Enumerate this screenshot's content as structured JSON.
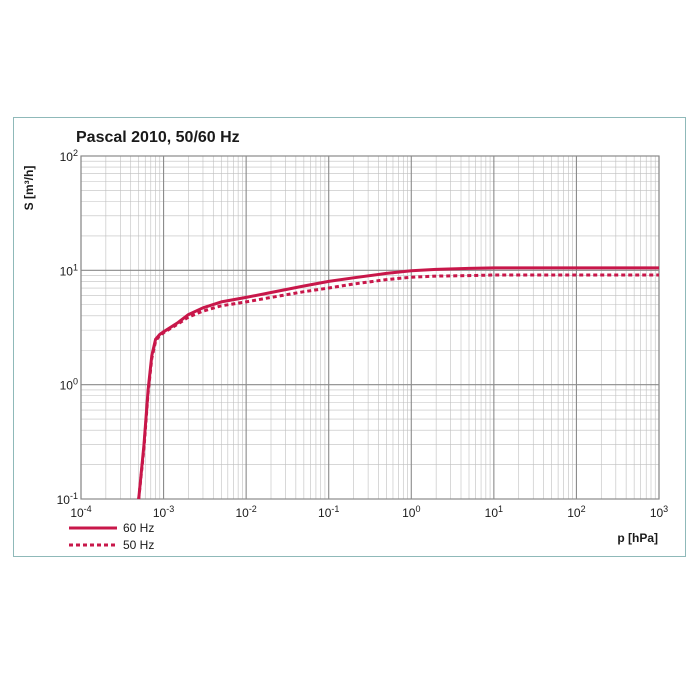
{
  "chart_data": {
    "type": "line",
    "title": "Pascal 2010, 50/60 Hz",
    "xlabel": "p [hPa]",
    "ylabel": "S [m³/h]",
    "x_scale": "log",
    "y_scale": "log",
    "xlim": [
      0.0001,
      1000
    ],
    "ylim": [
      0.1,
      100
    ],
    "grid": true,
    "legend_position": "bottom-left",
    "x_ticks": [
      {
        "base": "10",
        "exp": "-4",
        "value": 0.0001
      },
      {
        "base": "10",
        "exp": "-3",
        "value": 0.001
      },
      {
        "base": "10",
        "exp": "-2",
        "value": 0.01
      },
      {
        "base": "10",
        "exp": "-1",
        "value": 0.1
      },
      {
        "base": "10",
        "exp": "0",
        "value": 1
      },
      {
        "base": "10",
        "exp": "1",
        "value": 10
      },
      {
        "base": "10",
        "exp": "2",
        "value": 100
      },
      {
        "base": "10",
        "exp": "3",
        "value": 1000
      }
    ],
    "y_ticks": [
      {
        "base": "10",
        "exp": "-1",
        "value": 0.1
      },
      {
        "base": "10",
        "exp": "0",
        "value": 1
      },
      {
        "base": "10",
        "exp": "1",
        "value": 10
      },
      {
        "base": "10",
        "exp": "2",
        "value": 100
      }
    ],
    "series": [
      {
        "name": "60 Hz",
        "style": "solid",
        "color": "#c8174a",
        "x": [
          0.0005,
          0.00058,
          0.00065,
          0.00072,
          0.0008,
          0.0009,
          0.001,
          0.0015,
          0.002,
          0.003,
          0.005,
          0.01,
          0.02,
          0.05,
          0.1,
          0.2,
          0.5,
          1,
          2,
          5,
          10,
          20,
          50,
          100,
          1000
        ],
        "y": [
          0.1,
          0.3,
          0.9,
          1.8,
          2.5,
          2.75,
          2.9,
          3.5,
          4.1,
          4.7,
          5.3,
          5.8,
          6.4,
          7.3,
          8.0,
          8.6,
          9.4,
          9.9,
          10.2,
          10.4,
          10.5,
          10.5,
          10.5,
          10.5,
          10.5
        ]
      },
      {
        "name": "50 Hz",
        "style": "dashed",
        "color": "#c8174a",
        "x": [
          0.0005,
          0.00058,
          0.00065,
          0.00072,
          0.0008,
          0.0009,
          0.001,
          0.0015,
          0.002,
          0.003,
          0.005,
          0.01,
          0.02,
          0.05,
          0.1,
          0.2,
          0.5,
          1,
          2,
          5,
          10,
          20,
          50,
          100,
          1000
        ],
        "y": [
          0.1,
          0.28,
          0.85,
          1.7,
          2.4,
          2.7,
          2.85,
          3.4,
          3.9,
          4.4,
          4.9,
          5.3,
          5.8,
          6.5,
          7.0,
          7.6,
          8.3,
          8.7,
          8.9,
          9.0,
          9.1,
          9.1,
          9.1,
          9.1,
          9.1
        ]
      }
    ]
  }
}
